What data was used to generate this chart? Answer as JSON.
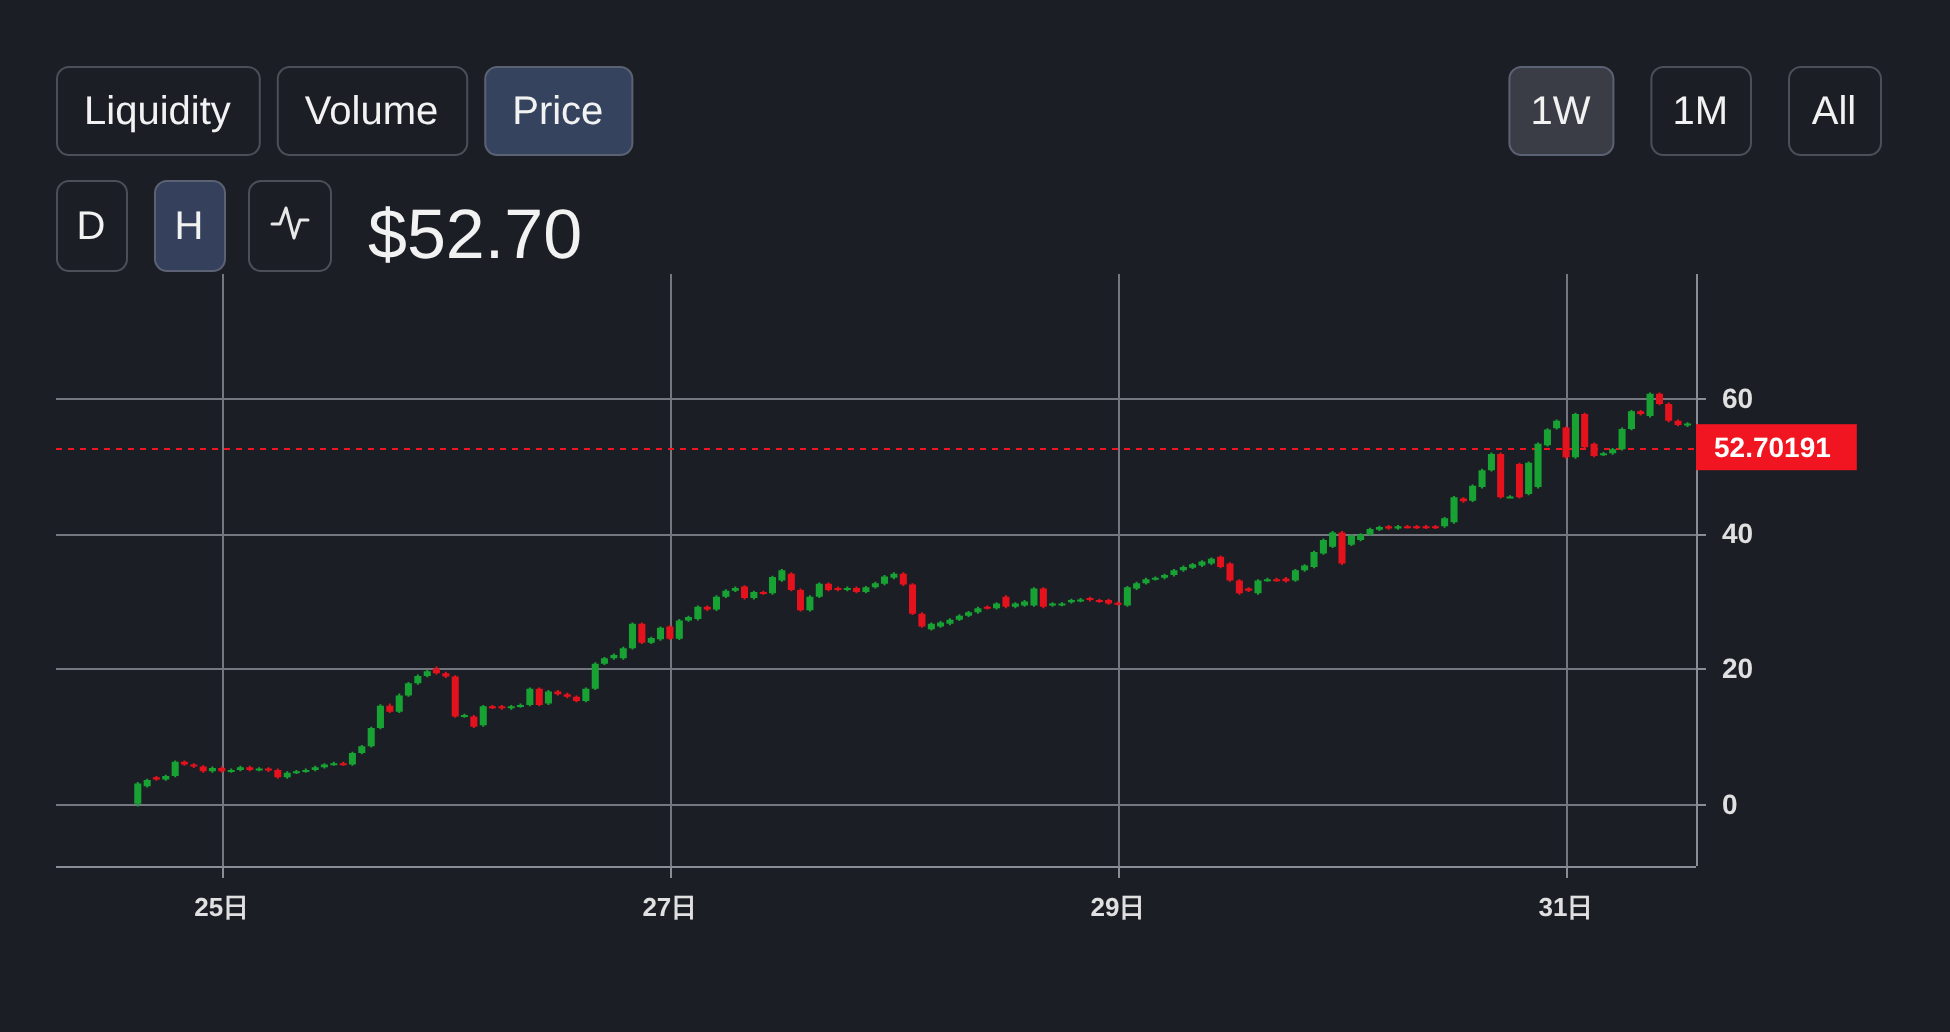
{
  "chart_data": {
    "type": "candlestick",
    "title": "$52.70",
    "annotations": [
      "Liquidity",
      "Volume",
      "Price",
      "1W",
      "1M",
      "All",
      "D",
      "H"
    ],
    "x": [
      24.625,
      24.667,
      24.708,
      24.75,
      24.792,
      24.833,
      24.875,
      24.917,
      24.958,
      25.0,
      25.042,
      25.083,
      25.125,
      25.167,
      25.208,
      25.25,
      25.292,
      25.333,
      25.375,
      25.417,
      25.458,
      25.5,
      25.542,
      25.583,
      25.625,
      25.667,
      25.708,
      25.75,
      25.792,
      25.833,
      25.875,
      25.917,
      25.958,
      26.0,
      26.042,
      26.083,
      26.125,
      26.167,
      26.208,
      26.25,
      26.292,
      26.333,
      26.375,
      26.417,
      26.458,
      26.5,
      26.542,
      26.583,
      26.625,
      26.667,
      26.708,
      26.75,
      26.792,
      26.833,
      26.875,
      26.917,
      26.958,
      27.0,
      27.042,
      27.083,
      27.125,
      27.167,
      27.208,
      27.25,
      27.292,
      27.333,
      27.375,
      27.417,
      27.458,
      27.5,
      27.542,
      27.583,
      27.625,
      27.667,
      27.708,
      27.75,
      27.792,
      27.833,
      27.875,
      27.917,
      27.958,
      28.0,
      28.042,
      28.083,
      28.125,
      28.167,
      28.208,
      28.25,
      28.292,
      28.333,
      28.375,
      28.417,
      28.458,
      28.5,
      28.542,
      28.583,
      28.625,
      28.667,
      28.708,
      28.75,
      28.792,
      28.833,
      28.875,
      28.917,
      28.958,
      29.0,
      29.042,
      29.083,
      29.125,
      29.167,
      29.208,
      29.25,
      29.292,
      29.333,
      29.375,
      29.417,
      29.458,
      29.5,
      29.542,
      29.583,
      29.625,
      29.667,
      29.708,
      29.75,
      29.792,
      29.833,
      29.875,
      29.917,
      29.958,
      30.0,
      30.042,
      30.083,
      30.125,
      30.167,
      30.208,
      30.25,
      30.292,
      30.333,
      30.375,
      30.417,
      30.458,
      30.5,
      30.542,
      30.583,
      30.625,
      30.667,
      30.708,
      30.75,
      30.792,
      30.833,
      30.875,
      30.917,
      30.958,
      31.0,
      31.042,
      31.083,
      31.125,
      31.167,
      31.208,
      31.25,
      31.292,
      31.333,
      31.375,
      31.417,
      31.458,
      31.5,
      31.542
    ],
    "ohlc": [
      [
        0.0,
        3.2,
        -0.4,
        3.0
      ],
      [
        2.6,
        3.7,
        2.4,
        3.5
      ],
      [
        3.9,
        4.1,
        3.4,
        3.6
      ],
      [
        3.6,
        4.3,
        3.4,
        4.1
      ],
      [
        4.1,
        6.4,
        3.9,
        6.2
      ],
      [
        6.2,
        6.4,
        5.6,
        5.8
      ],
      [
        5.8,
        6.0,
        5.3,
        5.5
      ],
      [
        5.5,
        5.7,
        4.6,
        4.8
      ],
      [
        4.8,
        5.5,
        4.6,
        5.3
      ],
      [
        5.3,
        5.5,
        4.6,
        4.8
      ],
      [
        4.8,
        5.2,
        4.6,
        5.0
      ],
      [
        5.0,
        5.6,
        4.8,
        5.4
      ],
      [
        5.4,
        5.6,
        4.8,
        5.0
      ],
      [
        5.0,
        5.4,
        4.8,
        5.2
      ],
      [
        5.2,
        5.4,
        4.7,
        4.9
      ],
      [
        5.0,
        5.2,
        3.7,
        3.9
      ],
      [
        3.9,
        4.8,
        3.7,
        4.6
      ],
      [
        4.6,
        5.0,
        4.4,
        4.8
      ],
      [
        4.8,
        5.2,
        4.6,
        5.0
      ],
      [
        5.0,
        5.6,
        4.8,
        5.4
      ],
      [
        5.4,
        6.0,
        5.2,
        5.8
      ],
      [
        5.8,
        6.2,
        5.6,
        6.0
      ],
      [
        6.0,
        6.2,
        5.6,
        5.8
      ],
      [
        5.8,
        7.7,
        5.6,
        7.5
      ],
      [
        7.5,
        8.7,
        7.3,
        8.5
      ],
      [
        8.5,
        11.4,
        8.3,
        11.2
      ],
      [
        11.2,
        14.7,
        11.0,
        14.5
      ],
      [
        14.5,
        14.8,
        13.4,
        13.6
      ],
      [
        13.6,
        16.3,
        13.4,
        16.0
      ],
      [
        16.0,
        18.0,
        15.8,
        17.8
      ],
      [
        17.8,
        19.1,
        17.6,
        18.9
      ],
      [
        18.9,
        19.8,
        18.7,
        19.6
      ],
      [
        20.0,
        20.3,
        19.1,
        19.3
      ],
      [
        19.3,
        19.5,
        18.6,
        18.8
      ],
      [
        18.8,
        19.0,
        12.7,
        12.9
      ],
      [
        12.9,
        13.3,
        12.7,
        13.1
      ],
      [
        12.9,
        13.1,
        11.2,
        11.4
      ],
      [
        11.6,
        14.6,
        11.4,
        14.4
      ],
      [
        14.4,
        14.6,
        14.0,
        14.2
      ],
      [
        14.4,
        14.6,
        13.9,
        14.1
      ],
      [
        14.1,
        14.6,
        13.9,
        14.4
      ],
      [
        14.4,
        14.8,
        14.2,
        14.6
      ],
      [
        14.6,
        17.2,
        14.4,
        17.0
      ],
      [
        17.0,
        17.2,
        14.4,
        14.6
      ],
      [
        14.8,
        16.8,
        14.6,
        16.6
      ],
      [
        16.6,
        16.8,
        16.0,
        16.2
      ],
      [
        16.2,
        16.4,
        15.6,
        15.8
      ],
      [
        15.8,
        16.0,
        15.0,
        15.2
      ],
      [
        15.2,
        17.2,
        15.0,
        17.0
      ],
      [
        17.0,
        20.9,
        16.8,
        20.7
      ],
      [
        20.7,
        21.7,
        20.5,
        21.5
      ],
      [
        21.5,
        22.2,
        21.3,
        22.0
      ],
      [
        21.5,
        23.2,
        21.3,
        23.0
      ],
      [
        23.0,
        26.8,
        22.8,
        26.6
      ],
      [
        26.6,
        26.8,
        23.6,
        23.8
      ],
      [
        23.8,
        24.7,
        23.6,
        24.5
      ],
      [
        24.3,
        26.2,
        24.1,
        26.0
      ],
      [
        26.2,
        26.4,
        24.2,
        24.4
      ],
      [
        24.4,
        27.3,
        24.2,
        27.1
      ],
      [
        27.1,
        27.8,
        26.9,
        27.6
      ],
      [
        27.3,
        29.3,
        27.1,
        29.1
      ],
      [
        29.1,
        29.3,
        28.5,
        28.7
      ],
      [
        28.7,
        30.8,
        28.5,
        30.6
      ],
      [
        30.6,
        31.7,
        30.4,
        31.5
      ],
      [
        31.5,
        32.1,
        31.3,
        31.9
      ],
      [
        32.1,
        32.3,
        30.2,
        30.4
      ],
      [
        30.4,
        31.5,
        30.2,
        31.3
      ],
      [
        31.3,
        31.5,
        30.9,
        31.1
      ],
      [
        31.1,
        33.7,
        30.9,
        33.5
      ],
      [
        33.0,
        34.7,
        32.8,
        34.5
      ],
      [
        34.0,
        34.2,
        31.4,
        31.6
      ],
      [
        31.6,
        31.8,
        28.4,
        28.6
      ],
      [
        28.6,
        30.8,
        28.4,
        30.6
      ],
      [
        30.6,
        32.7,
        30.4,
        32.5
      ],
      [
        32.5,
        32.7,
        31.4,
        31.6
      ],
      [
        31.9,
        32.1,
        31.4,
        31.6
      ],
      [
        31.6,
        32.1,
        31.4,
        31.9
      ],
      [
        31.9,
        32.1,
        31.1,
        31.3
      ],
      [
        31.3,
        32.2,
        31.1,
        32.0
      ],
      [
        32.0,
        32.8,
        31.8,
        32.6
      ],
      [
        32.5,
        33.8,
        32.3,
        33.6
      ],
      [
        33.4,
        34.2,
        33.2,
        34.0
      ],
      [
        34.0,
        34.2,
        32.2,
        32.4
      ],
      [
        32.4,
        32.6,
        27.9,
        28.1
      ],
      [
        28.1,
        28.3,
        26.0,
        26.2
      ],
      [
        25.8,
        26.8,
        25.6,
        26.6
      ],
      [
        26.2,
        27.0,
        26.0,
        26.8
      ],
      [
        26.6,
        27.4,
        26.4,
        27.2
      ],
      [
        27.2,
        28.0,
        27.0,
        27.8
      ],
      [
        27.8,
        28.5,
        27.6,
        28.3
      ],
      [
        28.3,
        29.1,
        28.1,
        28.9
      ],
      [
        29.1,
        29.3,
        28.7,
        28.9
      ],
      [
        28.9,
        29.8,
        28.7,
        29.6
      ],
      [
        30.6,
        30.8,
        28.9,
        29.1
      ],
      [
        29.1,
        29.8,
        28.9,
        29.6
      ],
      [
        29.3,
        30.1,
        29.1,
        29.9
      ],
      [
        29.3,
        32.0,
        29.1,
        31.8
      ],
      [
        31.8,
        32.0,
        28.9,
        29.1
      ],
      [
        29.3,
        29.8,
        29.1,
        29.6
      ],
      [
        29.4,
        29.8,
        29.2,
        29.6
      ],
      [
        29.8,
        30.3,
        29.6,
        30.1
      ],
      [
        30.0,
        30.4,
        29.8,
        30.2
      ],
      [
        30.4,
        30.6,
        29.9,
        30.1
      ],
      [
        30.1,
        30.3,
        29.7,
        29.9
      ],
      [
        30.1,
        30.3,
        29.4,
        29.6
      ],
      [
        29.7,
        29.9,
        29.3,
        29.5
      ],
      [
        29.3,
        32.2,
        29.1,
        32.0
      ],
      [
        31.8,
        32.8,
        31.6,
        32.6
      ],
      [
        32.6,
        33.4,
        32.4,
        33.2
      ],
      [
        33.2,
        33.6,
        33.0,
        33.4
      ],
      [
        33.4,
        34.0,
        33.2,
        33.8
      ],
      [
        33.8,
        34.7,
        33.6,
        34.5
      ],
      [
        34.5,
        35.2,
        34.3,
        35.0
      ],
      [
        34.9,
        35.6,
        34.7,
        35.4
      ],
      [
        35.2,
        36.0,
        35.0,
        35.8
      ],
      [
        35.5,
        36.4,
        35.3,
        36.2
      ],
      [
        36.5,
        36.7,
        34.8,
        35.0
      ],
      [
        35.5,
        35.7,
        32.8,
        33.0
      ],
      [
        33.0,
        33.2,
        30.9,
        31.1
      ],
      [
        31.8,
        32.0,
        31.3,
        31.5
      ],
      [
        31.1,
        33.2,
        30.9,
        33.0
      ],
      [
        33.0,
        33.4,
        32.8,
        33.2
      ],
      [
        33.2,
        33.4,
        32.8,
        33.0
      ],
      [
        33.3,
        33.5,
        32.7,
        32.9
      ],
      [
        33.0,
        34.7,
        32.8,
        34.5
      ],
      [
        34.5,
        35.4,
        34.3,
        35.2
      ],
      [
        35.0,
        37.4,
        34.8,
        37.2
      ],
      [
        37.0,
        39.2,
        36.8,
        39.0
      ],
      [
        38.0,
        40.3,
        37.8,
        40.1
      ],
      [
        40.1,
        40.3,
        35.3,
        35.5
      ],
      [
        38.3,
        39.8,
        38.1,
        39.6
      ],
      [
        39.0,
        40.0,
        38.8,
        39.8
      ],
      [
        39.8,
        40.8,
        39.6,
        40.6
      ],
      [
        40.5,
        41.1,
        40.3,
        40.9
      ],
      [
        41.0,
        41.2,
        40.5,
        40.7
      ],
      [
        40.7,
        41.2,
        40.5,
        41.0
      ],
      [
        41.0,
        41.2,
        40.7,
        40.9
      ],
      [
        41.0,
        41.2,
        40.6,
        40.8
      ],
      [
        41.0,
        41.2,
        40.6,
        40.8
      ],
      [
        41.0,
        41.2,
        40.6,
        40.8
      ],
      [
        41.0,
        42.4,
        40.8,
        42.2
      ],
      [
        41.6,
        45.5,
        41.4,
        45.3
      ],
      [
        45.1,
        45.3,
        44.5,
        44.7
      ],
      [
        44.8,
        47.2,
        44.6,
        47.0
      ],
      [
        46.8,
        49.5,
        46.6,
        49.3
      ],
      [
        49.3,
        51.9,
        49.1,
        51.7
      ],
      [
        51.7,
        51.9,
        45.1,
        45.3
      ],
      [
        45.3,
        45.6,
        45.1,
        45.4
      ],
      [
        50.2,
        50.4,
        45.1,
        45.3
      ],
      [
        45.8,
        50.6,
        45.6,
        50.4
      ],
      [
        46.8,
        53.4,
        46.6,
        53.2
      ],
      [
        53.0,
        55.5,
        52.8,
        55.3
      ],
      [
        55.5,
        56.8,
        55.3,
        56.6
      ],
      [
        55.6,
        55.8,
        51.0,
        51.2
      ],
      [
        51.2,
        57.8,
        51.0,
        57.6
      ],
      [
        57.6,
        57.8,
        52.5,
        52.7
      ],
      [
        53.2,
        53.4,
        51.2,
        51.4
      ],
      [
        51.6,
        52.0,
        51.4,
        51.8
      ],
      [
        51.8,
        52.6,
        51.6,
        52.4
      ],
      [
        52.4,
        55.6,
        52.2,
        55.4
      ],
      [
        55.4,
        58.2,
        55.2,
        58.0
      ],
      [
        58.0,
        58.2,
        57.4,
        57.6
      ],
      [
        57.3,
        60.8,
        57.1,
        60.6
      ],
      [
        60.6,
        60.8,
        58.9,
        59.1
      ],
      [
        59.1,
        59.3,
        56.4,
        56.6
      ],
      [
        56.6,
        56.8,
        55.8,
        56.0
      ],
      [
        55.9,
        56.4,
        55.7,
        56.2
      ]
    ],
    "xlim": [
      24.26,
      31.58
    ],
    "xticks": [
      {
        "value": 25,
        "label": "25日"
      },
      {
        "value": 27,
        "label": "27日"
      },
      {
        "value": 29,
        "label": "29日"
      },
      {
        "value": 31,
        "label": "31日"
      }
    ],
    "ylim": [
      -9.2,
      78.3
    ],
    "yticks": [
      0,
      20,
      40,
      60
    ],
    "grid": true,
    "ref_lines": [
      {
        "axis": "y",
        "value": 52.70191,
        "label": "52.70191",
        "color": "#f01520",
        "line_style": "dashed"
      }
    ]
  }
}
